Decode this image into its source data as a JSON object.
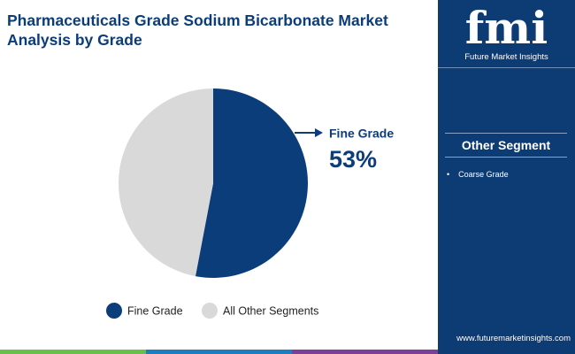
{
  "chart_data": {
    "type": "pie",
    "title": "Pharmaceuticals Grade Sodium Bicarbonate Market Analysis by Grade",
    "categories": [
      "Fine Grade",
      "All Other Segments"
    ],
    "values": [
      53,
      47
    ],
    "value_labels": [
      "53%",
      null
    ],
    "colors": [
      "#0b3d7a",
      "#d9d9d9"
    ],
    "legend": "bottom"
  },
  "logo": {
    "mark": "fmi",
    "name": "Future Market Insights"
  },
  "sidebar": {
    "heading": "Other Segment",
    "items": [
      "Coarse Grade"
    ]
  },
  "footer": {
    "url": "www.futuremarketinsights.com"
  }
}
